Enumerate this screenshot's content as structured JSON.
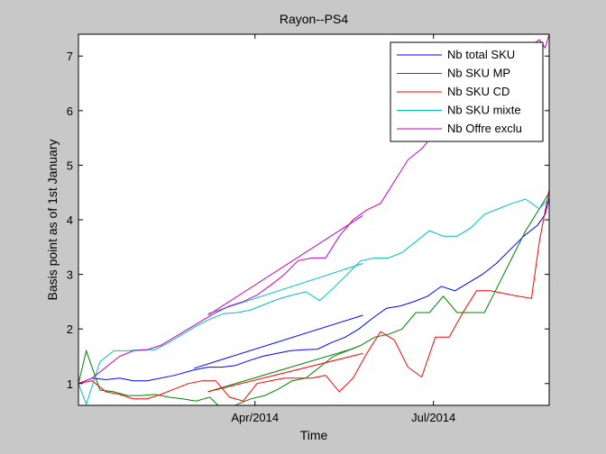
{
  "chart_data": {
    "type": "line",
    "title": "Rayon--PS4",
    "xlabel": "Time",
    "ylabel": "Basis point as of 1st January",
    "xlim": [
      "2014-01-01",
      "2014-08-29"
    ],
    "ylim": [
      0.6,
      7.4
    ],
    "x_ticks": [
      {
        "date": "2014-04-01",
        "label": "Apr/2014"
      },
      {
        "date": "2014-07-01",
        "label": "Jul/2014"
      }
    ],
    "y_ticks": [
      1,
      2,
      3,
      4,
      5,
      6,
      7
    ],
    "grid": false,
    "legend": "top-right",
    "series": [
      {
        "name": "Nb total SKU",
        "color": "#0000ff",
        "segments": [
          [
            [
              "2014-01-01",
              1.0
            ],
            [
              "2014-01-08",
              1.1
            ],
            [
              "2014-01-15",
              1.07
            ],
            [
              "2014-01-22",
              1.1
            ],
            [
              "2014-01-29",
              1.05
            ],
            [
              "2014-02-05",
              1.05
            ],
            [
              "2014-02-19",
              1.15
            ],
            [
              "2014-03-01",
              1.25
            ],
            [
              "2014-03-08",
              1.3
            ],
            [
              "2014-03-15",
              1.3
            ],
            [
              "2014-03-22",
              1.33
            ],
            [
              "2014-03-29",
              1.42
            ],
            [
              "2014-04-05",
              1.5
            ],
            [
              "2014-04-12",
              1.55
            ],
            [
              "2014-04-19",
              1.6
            ],
            [
              "2014-04-26",
              1.62
            ],
            [
              "2014-05-03",
              1.63
            ],
            [
              "2014-05-10",
              1.75
            ],
            [
              "2014-05-17",
              1.85
            ],
            [
              "2014-05-24",
              2.0
            ],
            [
              "2014-05-31",
              2.2
            ],
            [
              "2014-06-07",
              2.38
            ],
            [
              "2014-06-14",
              2.42
            ],
            [
              "2014-06-21",
              2.5
            ],
            [
              "2014-06-28",
              2.6
            ],
            [
              "2014-07-05",
              2.78
            ],
            [
              "2014-07-12",
              2.7
            ],
            [
              "2014-07-19",
              2.85
            ],
            [
              "2014-07-26",
              3.0
            ],
            [
              "2014-08-02",
              3.2
            ],
            [
              "2014-08-09",
              3.45
            ],
            [
              "2014-08-16",
              3.7
            ],
            [
              "2014-08-23",
              3.9
            ],
            [
              "2014-08-27",
              4.1
            ],
            [
              "2014-08-29",
              4.4
            ]
          ],
          [
            [
              "2014-03-01",
              1.28
            ],
            [
              "2014-05-26",
              2.25
            ]
          ]
        ]
      },
      {
        "name": "Nb SKU MP",
        "color": "#008000",
        "segments": [
          [
            [
              "2014-01-01",
              1.0
            ],
            [
              "2014-01-05",
              1.6
            ],
            [
              "2014-01-12",
              0.88
            ],
            [
              "2014-01-19",
              0.85
            ],
            [
              "2014-01-26",
              0.78
            ],
            [
              "2014-02-02",
              0.78
            ],
            [
              "2014-02-09",
              0.8
            ],
            [
              "2014-02-16",
              0.75
            ],
            [
              "2014-02-23",
              0.72
            ],
            [
              "2014-03-02",
              0.68
            ],
            [
              "2014-03-09",
              0.75
            ],
            [
              "2014-03-16",
              0.5
            ],
            [
              "2014-03-23",
              0.62
            ],
            [
              "2014-03-30",
              0.72
            ],
            [
              "2014-04-06",
              0.78
            ],
            [
              "2014-04-13",
              0.9
            ],
            [
              "2014-04-20",
              1.05
            ],
            [
              "2014-04-27",
              1.1
            ],
            [
              "2014-05-04",
              1.3
            ],
            [
              "2014-05-11",
              1.5
            ],
            [
              "2014-05-18",
              1.6
            ],
            [
              "2014-05-25",
              1.7
            ],
            [
              "2014-06-01",
              1.85
            ],
            [
              "2014-06-08",
              1.9
            ],
            [
              "2014-06-15",
              2.0
            ],
            [
              "2014-06-22",
              2.3
            ],
            [
              "2014-06-29",
              2.3
            ],
            [
              "2014-07-06",
              2.6
            ],
            [
              "2014-07-13",
              2.3
            ],
            [
              "2014-07-20",
              2.3
            ],
            [
              "2014-07-27",
              2.3
            ],
            [
              "2014-08-03",
              2.8
            ],
            [
              "2014-08-10",
              3.3
            ],
            [
              "2014-08-17",
              3.8
            ],
            [
              "2014-08-24",
              4.2
            ],
            [
              "2014-08-29",
              4.5
            ]
          ],
          [
            [
              "2014-03-08",
              0.85
            ],
            [
              "2014-05-22",
              1.65
            ]
          ]
        ]
      },
      {
        "name": "Nb SKU CD",
        "color": "#ff0000",
        "segments": [
          [
            [
              "2014-01-01",
              1.0
            ],
            [
              "2014-01-08",
              1.05
            ],
            [
              "2014-01-15",
              0.85
            ],
            [
              "2014-01-22",
              0.8
            ],
            [
              "2014-01-29",
              0.72
            ],
            [
              "2014-02-05",
              0.72
            ],
            [
              "2014-02-12",
              0.8
            ],
            [
              "2014-02-19",
              0.9
            ],
            [
              "2014-02-26",
              1.0
            ],
            [
              "2014-03-05",
              1.05
            ],
            [
              "2014-03-12",
              1.05
            ],
            [
              "2014-03-19",
              0.75
            ],
            [
              "2014-03-26",
              0.68
            ],
            [
              "2014-04-02",
              1.0
            ],
            [
              "2014-04-09",
              1.05
            ],
            [
              "2014-04-16",
              1.1
            ],
            [
              "2014-04-23",
              1.1
            ],
            [
              "2014-04-30",
              1.1
            ],
            [
              "2014-05-07",
              1.15
            ],
            [
              "2014-05-14",
              0.85
            ],
            [
              "2014-05-21",
              1.1
            ],
            [
              "2014-05-28",
              1.55
            ],
            [
              "2014-06-04",
              1.95
            ],
            [
              "2014-06-11",
              1.8
            ],
            [
              "2014-06-18",
              1.3
            ],
            [
              "2014-06-25",
              1.12
            ],
            [
              "2014-07-02",
              1.85
            ],
            [
              "2014-07-09",
              1.85
            ],
            [
              "2014-07-16",
              2.3
            ],
            [
              "2014-07-23",
              2.7
            ],
            [
              "2014-07-30",
              2.7
            ],
            [
              "2014-08-06",
              2.65
            ],
            [
              "2014-08-13",
              2.6
            ],
            [
              "2014-08-20",
              2.56
            ],
            [
              "2014-08-24",
              3.6
            ],
            [
              "2014-08-29",
              4.55
            ]
          ],
          [
            [
              "2014-03-08",
              0.85
            ],
            [
              "2014-05-26",
              1.55
            ]
          ]
        ]
      },
      {
        "name": "Nb SKU mixte",
        "color": "#00bfbf",
        "segments": [
          [
            [
              "2014-01-01",
              1.0
            ],
            [
              "2014-01-05",
              0.62
            ],
            [
              "2014-01-12",
              1.4
            ],
            [
              "2014-01-19",
              1.6
            ],
            [
              "2014-01-26",
              1.6
            ],
            [
              "2014-02-02",
              1.62
            ],
            [
              "2014-02-09",
              1.62
            ],
            [
              "2014-02-16",
              1.75
            ],
            [
              "2014-02-23",
              1.9
            ],
            [
              "2014-03-02",
              2.05
            ],
            [
              "2014-03-09",
              2.18
            ],
            [
              "2014-03-16",
              2.28
            ],
            [
              "2014-03-23",
              2.3
            ],
            [
              "2014-03-30",
              2.35
            ],
            [
              "2014-04-06",
              2.45
            ],
            [
              "2014-04-13",
              2.55
            ],
            [
              "2014-04-20",
              2.62
            ],
            [
              "2014-04-27",
              2.68
            ],
            [
              "2014-05-04",
              2.52
            ],
            [
              "2014-05-11",
              2.75
            ],
            [
              "2014-05-18",
              3.0
            ],
            [
              "2014-05-25",
              3.25
            ],
            [
              "2014-06-01",
              3.3
            ],
            [
              "2014-06-08",
              3.3
            ],
            [
              "2014-06-15",
              3.4
            ],
            [
              "2014-06-22",
              3.6
            ],
            [
              "2014-06-29",
              3.8
            ],
            [
              "2014-07-06",
              3.7
            ],
            [
              "2014-07-13",
              3.7
            ],
            [
              "2014-07-20",
              3.85
            ],
            [
              "2014-07-27",
              4.1
            ],
            [
              "2014-08-03",
              4.2
            ],
            [
              "2014-08-10",
              4.3
            ],
            [
              "2014-08-17",
              4.38
            ],
            [
              "2014-08-24",
              4.2
            ],
            [
              "2014-08-29",
              4.4
            ]
          ],
          [
            [
              "2014-03-08",
              2.28
            ],
            [
              "2014-05-26",
              3.2
            ]
          ]
        ]
      },
      {
        "name": "Nb Offre exclu",
        "color": "#bf00bf",
        "segments": [
          [
            [
              "2014-01-01",
              1.0
            ],
            [
              "2014-01-08",
              1.1
            ],
            [
              "2014-01-15",
              1.3
            ],
            [
              "2014-01-22",
              1.5
            ],
            [
              "2014-01-29",
              1.6
            ],
            [
              "2014-02-05",
              1.62
            ],
            [
              "2014-02-12",
              1.7
            ],
            [
              "2014-02-19",
              1.85
            ],
            [
              "2014-02-26",
              2.0
            ],
            [
              "2014-03-05",
              2.15
            ],
            [
              "2014-03-12",
              2.3
            ],
            [
              "2014-03-19",
              2.42
            ],
            [
              "2014-03-26",
              2.5
            ],
            [
              "2014-04-02",
              2.62
            ],
            [
              "2014-04-09",
              2.8
            ],
            [
              "2014-04-16",
              3.0
            ],
            [
              "2014-04-23",
              3.25
            ],
            [
              "2014-04-30",
              3.3
            ],
            [
              "2014-05-07",
              3.3
            ],
            [
              "2014-05-14",
              3.7
            ],
            [
              "2014-05-21",
              4.0
            ],
            [
              "2014-05-28",
              4.18
            ],
            [
              "2014-06-04",
              4.3
            ],
            [
              "2014-06-11",
              4.7
            ],
            [
              "2014-06-18",
              5.1
            ],
            [
              "2014-06-25",
              5.3
            ],
            [
              "2014-07-02",
              5.6
            ],
            [
              "2014-07-09",
              5.85
            ],
            [
              "2014-07-16",
              6.1
            ],
            [
              "2014-07-23",
              6.35
            ],
            [
              "2014-07-30",
              6.6
            ],
            [
              "2014-08-06",
              6.85
            ],
            [
              "2014-08-13",
              7.05
            ],
            [
              "2014-08-20",
              7.2
            ],
            [
              "2014-08-24",
              7.3
            ],
            [
              "2014-08-27",
              7.15
            ],
            [
              "2014-08-29",
              7.4
            ]
          ],
          [
            [
              "2014-03-08",
              2.25
            ],
            [
              "2014-05-26",
              4.08
            ]
          ]
        ]
      }
    ]
  }
}
